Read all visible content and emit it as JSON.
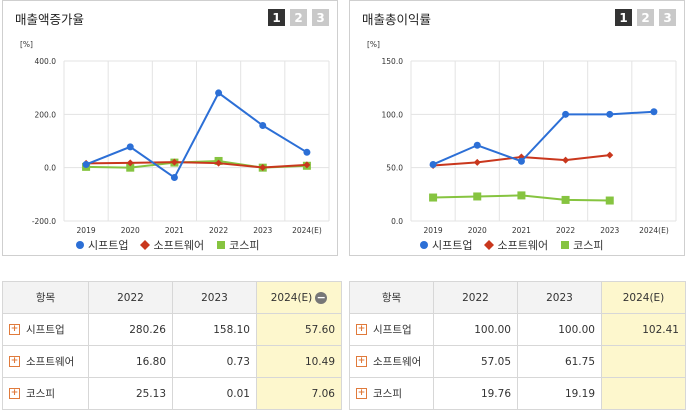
{
  "colors": {
    "s1": "#2c6fd6",
    "s2": "#c9371d",
    "s3": "#86c440"
  },
  "legend": [
    "시프트업",
    "소프트웨어",
    "코스피"
  ],
  "pager": [
    "1",
    "2",
    "3"
  ],
  "left_panel": {
    "title": "매출액증가율",
    "unit": "[%]"
  },
  "right_panel": {
    "title": "매출총이익률",
    "unit": "[%]"
  },
  "chart_data": [
    {
      "type": "line",
      "title": "매출액증가율",
      "ylabel": "[%]",
      "x": [
        "2019",
        "2020",
        "2021",
        "2022",
        "2023",
        "2024(E)"
      ],
      "ylim": [
        -200,
        400
      ],
      "yticks": [
        -200,
        0,
        200,
        400
      ],
      "ytick_labels": [
        "-200.0",
        "0.0",
        "200.0",
        "400.0"
      ],
      "series": [
        {
          "name": "시프트업",
          "values": [
            12,
            78,
            -37,
            280.26,
            158.1,
            57.6
          ]
        },
        {
          "name": "소프트웨어",
          "values": [
            16,
            18,
            21,
            16.8,
            0.73,
            10.49
          ]
        },
        {
          "name": "코스피",
          "values": [
            3,
            0,
            19,
            25.13,
            0.01,
            7.06
          ]
        }
      ],
      "grid": true,
      "legend": "bottom"
    },
    {
      "type": "line",
      "title": "매출총이익률",
      "ylabel": "[%]",
      "x": [
        "2019",
        "2020",
        "2021",
        "2022",
        "2023",
        "2024(E)"
      ],
      "ylim": [
        0,
        150
      ],
      "yticks": [
        0,
        50,
        100,
        150
      ],
      "ytick_labels": [
        "0.0",
        "50.0",
        "100.0",
        "150.0"
      ],
      "series": [
        {
          "name": "시프트업",
          "values": [
            53,
            71,
            56,
            100.0,
            100.0,
            102.41
          ]
        },
        {
          "name": "소프트웨어",
          "values": [
            52,
            55,
            60,
            57.05,
            61.75,
            null
          ]
        },
        {
          "name": "코스피",
          "values": [
            22,
            23,
            24,
            19.76,
            19.19,
            null
          ]
        }
      ],
      "grid": true,
      "legend": "bottom"
    }
  ],
  "left_table": {
    "headers": [
      "항목",
      "2022",
      "2023",
      "2024(E)"
    ],
    "rows": [
      {
        "name": "시프트업",
        "vals": [
          "280.26",
          "158.10",
          "57.60"
        ]
      },
      {
        "name": "소프트웨어",
        "vals": [
          "16.80",
          "0.73",
          "10.49"
        ]
      },
      {
        "name": "코스피",
        "vals": [
          "25.13",
          "0.01",
          "7.06"
        ]
      }
    ]
  },
  "right_table": {
    "headers": [
      "항목",
      "2022",
      "2023",
      "2024(E)"
    ],
    "rows": [
      {
        "name": "시프트업",
        "vals": [
          "100.00",
          "100.00",
          "102.41"
        ]
      },
      {
        "name": "소프트웨어",
        "vals": [
          "57.05",
          "61.75",
          ""
        ]
      },
      {
        "name": "코스피",
        "vals": [
          "19.76",
          "19.19",
          ""
        ]
      }
    ]
  }
}
